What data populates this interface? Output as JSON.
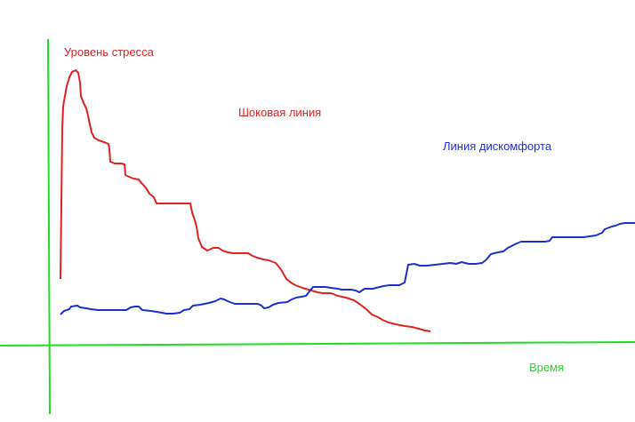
{
  "labels": {
    "y_axis": "Уровень стресса",
    "shock_line": "Шоковая линия",
    "discomfort_line": "Линия дискомфорта",
    "x_axis": "Время"
  },
  "colors": {
    "axes": "#22dd22",
    "shock": "#e02222",
    "discomfort": "#1f2fd0"
  }
}
